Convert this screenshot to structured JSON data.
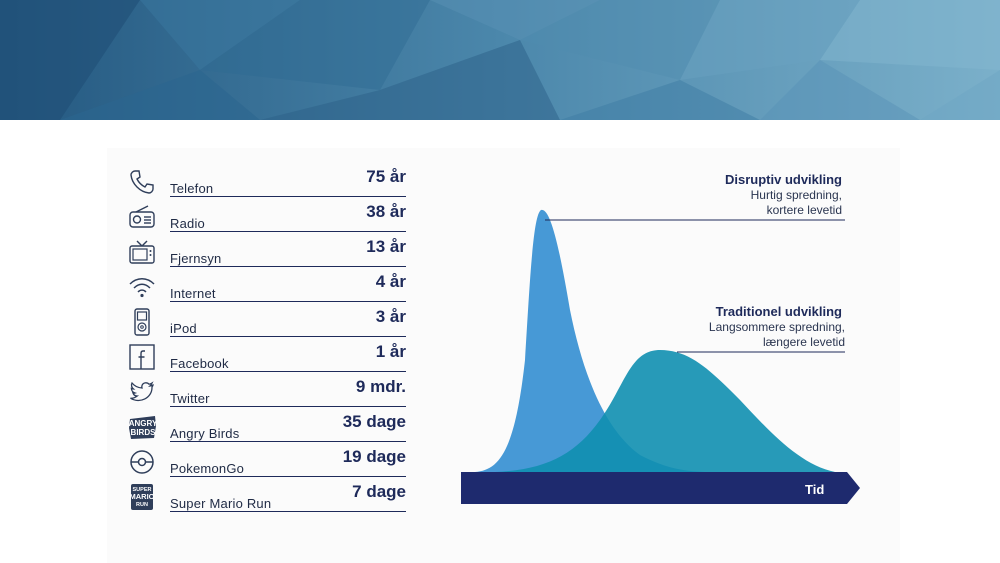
{
  "tech_list": [
    {
      "icon": "phone-icon",
      "name": "Telefon",
      "time": "75 år"
    },
    {
      "icon": "radio-icon",
      "name": "Radio",
      "time": "38 år"
    },
    {
      "icon": "tv-icon",
      "name": "Fjernsyn",
      "time": "13 år"
    },
    {
      "icon": "wifi-icon",
      "name": "Internet",
      "time": "4 år"
    },
    {
      "icon": "ipod-icon",
      "name": "iPod",
      "time": "3 år"
    },
    {
      "icon": "facebook-icon",
      "name": "Facebook",
      "time": "1 år"
    },
    {
      "icon": "twitter-bird-icon",
      "name": "Twitter",
      "time": "9 mdr."
    },
    {
      "icon": "angry-birds-logo-icon",
      "name": "Angry Birds",
      "time": "35 dage"
    },
    {
      "icon": "pokeball-icon",
      "name": "PokemonGo",
      "time": "19 dage"
    },
    {
      "icon": "super-mario-run-logo-icon",
      "name": "Super Mario Run",
      "time": "7 dage"
    }
  ],
  "chart": {
    "disruptive": {
      "title": "Disruptiv udvikling",
      "line1": "Hurtig spredning,",
      "line2": "kortere levetid",
      "color": "#3d94d4"
    },
    "traditional": {
      "title": "Traditionel udvikling",
      "line1": "Langsommere spredning,",
      "line2": "længere levetid",
      "color": "#0f8fb0"
    },
    "axis_label": "Tid",
    "axis_color": "#1e2a6e"
  },
  "colors": {
    "banner_dark": "#2a5a82",
    "banner_light": "#6fa7c4",
    "text_navy": "#1e2a5a"
  }
}
